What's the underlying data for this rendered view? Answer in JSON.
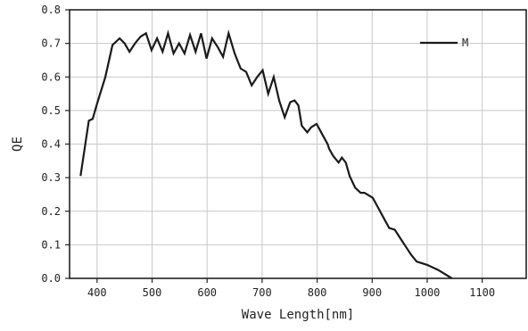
{
  "chart_data": {
    "type": "line",
    "xlabel": "Wave Length[nm]",
    "ylabel": "QE",
    "xlim": [
      350,
      1180
    ],
    "ylim": [
      0.0,
      0.8
    ],
    "xticks": [
      400,
      500,
      600,
      700,
      800,
      900,
      1000,
      1100
    ],
    "yticks": [
      0.0,
      0.1,
      0.2,
      0.3,
      0.4,
      0.5,
      0.6,
      0.7,
      0.8
    ],
    "ytick_labels": [
      "0.0",
      "0.1",
      "0.2",
      "0.3",
      "0.4",
      "0.5",
      "0.6",
      "0.7",
      "0.8"
    ],
    "grid": true,
    "legend": {
      "position": "top-right",
      "entries": [
        "M"
      ]
    },
    "series": [
      {
        "name": "M",
        "color": "#1a1a1a",
        "x": [
          370,
          385,
          392,
          400,
          415,
          428,
          441,
          450,
          459,
          469,
          479,
          489,
          499,
          509,
          519,
          529,
          539,
          549,
          559,
          569,
          579,
          589,
          599,
          609,
          619,
          629,
          639,
          650,
          661,
          671,
          681,
          691,
          701,
          711,
          721,
          731,
          741,
          751,
          759,
          766,
          772,
          782,
          789,
          799,
          809,
          819,
          822,
          829,
          839,
          845,
          852,
          859,
          869,
          879,
          886,
          901,
          911,
          921,
          931,
          941,
          951,
          961,
          971,
          981,
          1000,
          1020,
          1045
        ],
        "y": [
          0.305,
          0.47,
          0.475,
          0.52,
          0.6,
          0.695,
          0.715,
          0.7,
          0.675,
          0.7,
          0.72,
          0.73,
          0.68,
          0.715,
          0.675,
          0.73,
          0.67,
          0.7,
          0.67,
          0.725,
          0.675,
          0.73,
          0.655,
          0.715,
          0.69,
          0.66,
          0.73,
          0.67,
          0.625,
          0.615,
          0.575,
          0.6,
          0.62,
          0.55,
          0.6,
          0.53,
          0.48,
          0.525,
          0.53,
          0.515,
          0.455,
          0.435,
          0.45,
          0.46,
          0.43,
          0.4,
          0.385,
          0.365,
          0.345,
          0.36,
          0.345,
          0.305,
          0.27,
          0.255,
          0.255,
          0.24,
          0.21,
          0.18,
          0.15,
          0.145,
          0.12,
          0.095,
          0.07,
          0.05,
          0.04,
          0.025,
          0.0
        ]
      }
    ]
  }
}
